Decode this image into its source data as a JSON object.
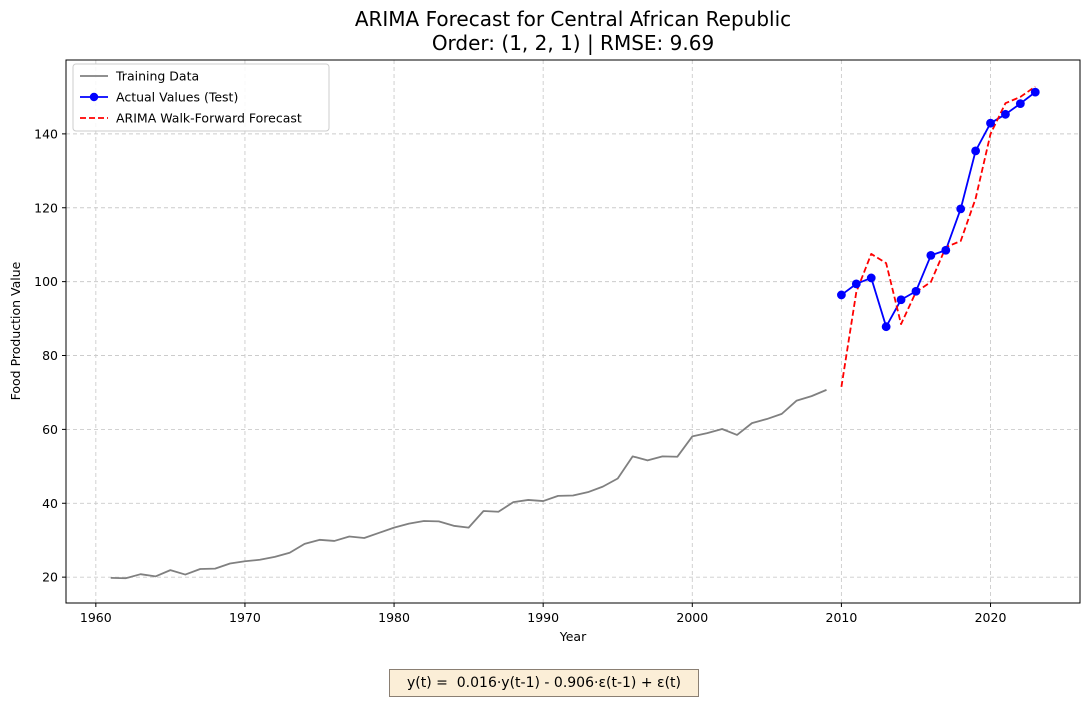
{
  "chart_data": {
    "type": "line",
    "title": "ARIMA Forecast for Central African Republic",
    "subtitle": "Order: (1, 2, 1) | RMSE: 9.69",
    "xlabel": "Year",
    "ylabel": "Food Production Value",
    "xlim": [
      1958,
      2026
    ],
    "ylim": [
      13,
      160
    ],
    "xticks": [
      1960,
      1970,
      1980,
      1990,
      2000,
      2010,
      2020
    ],
    "yticks": [
      20,
      40,
      60,
      80,
      100,
      120,
      140
    ],
    "grid": true,
    "legend_position": "top-left",
    "series": [
      {
        "name": "Training Data",
        "color": "#808080",
        "style": "solid",
        "marker": "none",
        "x": [
          1961,
          1962,
          1963,
          1964,
          1965,
          1966,
          1967,
          1968,
          1969,
          1970,
          1971,
          1972,
          1973,
          1974,
          1975,
          1976,
          1977,
          1978,
          1979,
          1980,
          1981,
          1982,
          1983,
          1984,
          1985,
          1986,
          1987,
          1988,
          1989,
          1990,
          1991,
          1992,
          1993,
          1994,
          1995,
          1996,
          1997,
          1998,
          1999,
          2000,
          2001,
          2002,
          2003,
          2004,
          2005,
          2006,
          2007,
          2008,
          2009
        ],
        "y": [
          19.8,
          19.7,
          20.8,
          20.2,
          21.9,
          20.7,
          22.2,
          22.3,
          23.7,
          24.3,
          24.7,
          25.5,
          26.6,
          29.0,
          30.1,
          29.8,
          31.0,
          30.6,
          32.0,
          33.4,
          34.5,
          35.2,
          35.1,
          33.9,
          33.4,
          37.9,
          37.7,
          40.3,
          40.9,
          40.6,
          42.0,
          42.1,
          43.0,
          44.5,
          46.7,
          52.7,
          51.6,
          52.7,
          52.6,
          58.1,
          59.0,
          60.1,
          58.5,
          61.7,
          62.8,
          64.2,
          67.8,
          69.0,
          70.7
        ]
      },
      {
        "name": "Actual Values (Test)",
        "color": "#0000ff",
        "style": "solid",
        "marker": "circle",
        "x": [
          2010,
          2011,
          2012,
          2013,
          2014,
          2015,
          2016,
          2017,
          2018,
          2019,
          2020,
          2021,
          2022,
          2023
        ],
        "y": [
          96.4,
          99.4,
          101.0,
          87.8,
          95.1,
          97.4,
          107.1,
          108.5,
          119.7,
          135.4,
          142.9,
          145.3,
          148.2,
          151.3
        ]
      },
      {
        "name": "ARIMA Walk-Forward Forecast",
        "color": "#ff0000",
        "style": "dashed",
        "marker": "none",
        "x": [
          2010,
          2011,
          2012,
          2013,
          2014,
          2015,
          2016,
          2017,
          2018,
          2019,
          2020,
          2021,
          2022,
          2023
        ],
        "y": [
          71.5,
          97.2,
          107.5,
          105.0,
          88.5,
          97.2,
          99.9,
          109.3,
          111.0,
          122.5,
          140.0,
          148.3,
          150.0,
          152.8
        ]
      }
    ]
  },
  "equation": {
    "text": "y(t) =  0.016·y(t-1) - 0.906·ε(t-1) + ε(t)"
  }
}
